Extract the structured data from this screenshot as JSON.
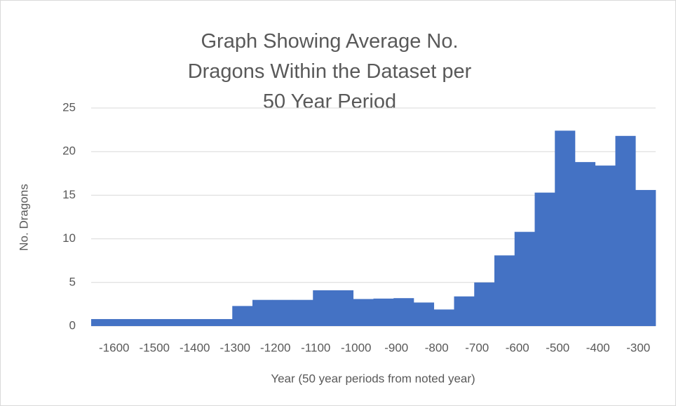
{
  "chart_data": {
    "type": "bar",
    "title": "Graph Showing Average No. Dragons Within the Dataset per 50 Year Period",
    "x_label": "Year (50 year periods from noted year)",
    "y_label": "No. Dragons",
    "categories": [
      "-1600",
      null,
      "-1500",
      null,
      "-1400",
      null,
      "-1300",
      null,
      "-1200",
      null,
      "-1100",
      null,
      "-1000",
      null,
      "-900",
      null,
      "-800",
      null,
      "-700",
      null,
      "-600",
      null,
      "-500",
      null,
      "-400",
      null,
      "-300",
      null
    ],
    "values": [
      0.8,
      0.8,
      0.8,
      0.8,
      0.8,
      0.8,
      0.8,
      2.3,
      3.0,
      3.0,
      3.0,
      4.1,
      4.1,
      3.1,
      3.15,
      3.2,
      2.7,
      1.9,
      3.4,
      5.0,
      8.1,
      10.8,
      15.3,
      22.4,
      18.8,
      18.4,
      21.8,
      15.6
    ],
    "color": "#4472c4",
    "ylim": [
      0,
      25
    ],
    "yticks": [
      0,
      5,
      10,
      15,
      20,
      25
    ],
    "grid": true
  }
}
